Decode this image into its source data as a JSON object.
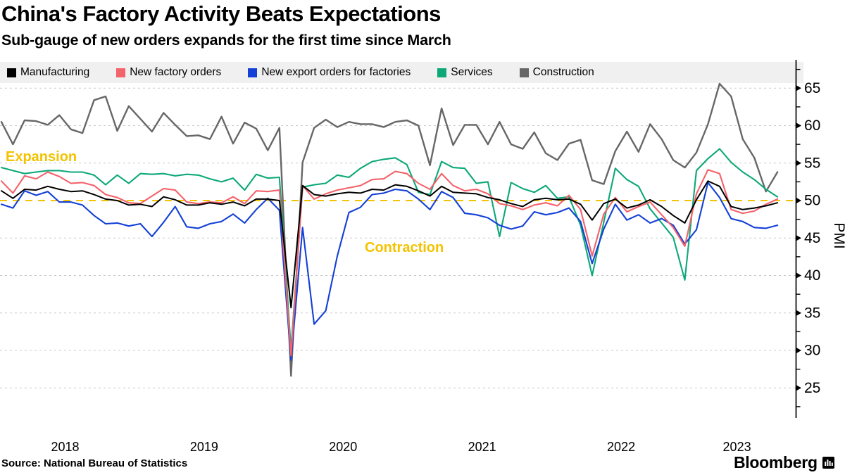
{
  "header": {
    "title": "China's Factory Activity Beats Expectations",
    "subtitle": "Sub-gauge of new orders expands for the first time since March"
  },
  "annotations": {
    "expansion": "Expansion",
    "contraction": "Contraction",
    "color": "#F3C300"
  },
  "footer": {
    "source": "Source: National Bureau of Statistics",
    "brand": "Bloomberg"
  },
  "chart_data": {
    "type": "line",
    "title": "China's Factory Activity Beats Expectations",
    "subtitle": "Sub-gauge of new orders expands for the first time since March",
    "ylabel": "PMI",
    "yticks": [
      25,
      30,
      35,
      40,
      45,
      50,
      55,
      60,
      65
    ],
    "ylim": [
      22,
      68.5
    ],
    "grid": "horizontal-dashed",
    "gridline_color": "#C9C9C9",
    "legend_position": "top",
    "reference_line": {
      "value": 50,
      "color": "#F3C300",
      "style": "dashed"
    },
    "x_frequency": "monthly",
    "x_ticks": [
      {
        "label": "2018",
        "month_index": 5.5
      },
      {
        "label": "2019",
        "month_index": 17.5
      },
      {
        "label": "2020",
        "month_index": 29.5
      },
      {
        "label": "2021",
        "month_index": 41.5
      },
      {
        "label": "2022",
        "month_index": 53.5
      },
      {
        "label": "2023",
        "month_index": 63.5
      }
    ],
    "x": [
      "2018-01",
      "2018-02",
      "2018-03",
      "2018-04",
      "2018-05",
      "2018-06",
      "2018-07",
      "2018-08",
      "2018-09",
      "2018-10",
      "2018-11",
      "2018-12",
      "2019-01",
      "2019-02",
      "2019-03",
      "2019-04",
      "2019-05",
      "2019-06",
      "2019-07",
      "2019-08",
      "2019-09",
      "2019-10",
      "2019-11",
      "2019-12",
      "2020-01",
      "2020-02",
      "2020-03",
      "2020-04",
      "2020-05",
      "2020-06",
      "2020-07",
      "2020-08",
      "2020-09",
      "2020-10",
      "2020-11",
      "2020-12",
      "2021-01",
      "2021-02",
      "2021-03",
      "2021-04",
      "2021-05",
      "2021-06",
      "2021-07",
      "2021-08",
      "2021-09",
      "2021-10",
      "2021-11",
      "2021-12",
      "2022-01",
      "2022-02",
      "2022-03",
      "2022-04",
      "2022-05",
      "2022-06",
      "2022-07",
      "2022-08",
      "2022-09",
      "2022-10",
      "2022-11",
      "2022-12",
      "2023-01",
      "2023-02",
      "2023-03",
      "2023-04",
      "2023-05",
      "2023-06",
      "2023-07",
      "2023-08"
    ],
    "series": [
      {
        "name": "Manufacturing",
        "color": "#000000",
        "width": 2.0,
        "values": [
          51.3,
          50.3,
          51.5,
          51.4,
          51.9,
          51.5,
          51.2,
          51.3,
          50.8,
          50.2,
          50.0,
          49.4,
          49.5,
          49.2,
          50.5,
          50.1,
          49.4,
          49.4,
          49.7,
          49.5,
          49.8,
          49.3,
          50.2,
          50.2,
          50.0,
          35.7,
          52.0,
          50.8,
          50.6,
          50.9,
          51.1,
          51.0,
          51.5,
          51.4,
          52.1,
          51.9,
          51.3,
          50.6,
          51.9,
          51.1,
          51.0,
          50.9,
          50.4,
          50.1,
          49.6,
          49.2,
          50.1,
          50.3,
          50.1,
          50.2,
          49.5,
          47.4,
          49.6,
          50.2,
          49.0,
          49.4,
          50.1,
          49.2,
          48.0,
          47.0,
          50.1,
          52.6,
          51.9,
          49.2,
          48.8,
          49.0,
          49.3,
          49.7
        ]
      },
      {
        "name": "New factory orders",
        "color": "#F4626B",
        "width": 2.1,
        "values": [
          52.6,
          51.0,
          53.3,
          52.9,
          53.8,
          53.2,
          52.3,
          52.4,
          52.0,
          50.8,
          50.4,
          49.7,
          49.6,
          50.6,
          51.6,
          51.4,
          49.8,
          49.6,
          49.8,
          49.7,
          50.5,
          49.6,
          51.3,
          51.2,
          51.4,
          29.3,
          52.0,
          50.2,
          50.9,
          51.4,
          51.7,
          52.0,
          52.8,
          52.9,
          53.9,
          53.6,
          52.3,
          51.5,
          53.6,
          52.0,
          51.3,
          51.5,
          50.9,
          49.6,
          49.3,
          48.8,
          49.4,
          49.7,
          49.3,
          50.7,
          48.8,
          42.6,
          48.2,
          50.4,
          48.5,
          49.2,
          49.8,
          48.1,
          46.4,
          43.9,
          50.9,
          54.1,
          53.6,
          48.8,
          48.3,
          48.6,
          49.5,
          50.2
        ]
      },
      {
        "name": "New export orders for factories",
        "color": "#1340D6",
        "width": 2.1,
        "values": [
          49.5,
          49.0,
          51.3,
          50.7,
          51.2,
          49.8,
          49.8,
          49.4,
          48.0,
          46.9,
          47.0,
          46.6,
          46.9,
          45.2,
          47.1,
          49.2,
          46.5,
          46.3,
          46.9,
          47.2,
          48.2,
          47.0,
          48.8,
          50.3,
          48.7,
          28.7,
          46.4,
          33.5,
          35.3,
          42.6,
          48.4,
          49.1,
          50.8,
          51.0,
          51.5,
          51.3,
          50.2,
          48.8,
          51.2,
          50.4,
          48.3,
          48.1,
          47.7,
          46.7,
          46.2,
          46.6,
          48.5,
          48.1,
          48.4,
          49.0,
          47.2,
          41.6,
          46.2,
          49.5,
          47.4,
          48.1,
          47.0,
          47.6,
          46.7,
          44.2,
          46.1,
          52.4,
          50.4,
          47.6,
          47.2,
          46.4,
          46.3,
          46.7
        ]
      },
      {
        "name": "Services",
        "color": "#0CA878",
        "width": 2.1,
        "values": [
          54.4,
          54.0,
          53.6,
          53.8,
          54.0,
          54.0,
          53.8,
          53.8,
          53.4,
          52.1,
          53.4,
          52.3,
          53.6,
          53.5,
          53.6,
          53.3,
          53.5,
          53.4,
          52.9,
          52.5,
          53.0,
          51.4,
          53.5,
          53.0,
          53.1,
          30.1,
          51.8,
          52.1,
          52.3,
          53.4,
          53.1,
          54.3,
          55.2,
          55.5,
          55.7,
          54.8,
          51.1,
          50.8,
          55.2,
          54.4,
          54.3,
          52.3,
          52.5,
          45.2,
          52.4,
          51.6,
          51.1,
          52.0,
          50.3,
          50.5,
          46.7,
          40.0,
          47.1,
          54.3,
          52.8,
          51.9,
          48.9,
          47.0,
          45.1,
          39.4,
          54.0,
          55.6,
          56.9,
          55.1,
          53.8,
          52.8,
          51.5,
          50.5
        ]
      },
      {
        "name": "Construction",
        "color": "#676767",
        "width": 2.4,
        "values": [
          60.5,
          57.5,
          60.7,
          60.6,
          60.1,
          61.4,
          59.5,
          59.0,
          63.4,
          63.9,
          59.3,
          62.6,
          60.9,
          59.2,
          61.7,
          60.1,
          58.6,
          58.7,
          58.2,
          61.2,
          57.6,
          60.4,
          59.6,
          56.7,
          59.7,
          26.6,
          55.1,
          59.7,
          60.8,
          59.8,
          60.5,
          60.2,
          60.2,
          59.8,
          60.5,
          60.7,
          60.0,
          54.7,
          62.3,
          57.4,
          60.1,
          60.1,
          57.5,
          60.5,
          57.5,
          56.9,
          59.1,
          56.3,
          55.4,
          57.6,
          58.1,
          52.7,
          52.2,
          56.6,
          59.2,
          56.5,
          60.2,
          58.2,
          55.4,
          54.4,
          56.4,
          60.2,
          65.6,
          63.9,
          58.2,
          55.7,
          51.2,
          53.8
        ]
      }
    ]
  }
}
